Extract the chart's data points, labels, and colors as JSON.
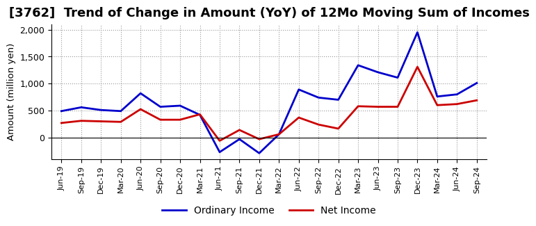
{
  "title": "[3762]  Trend of Change in Amount (YoY) of 12Mo Moving Sum of Incomes",
  "ylabel": "Amount (million yen)",
  "x_labels": [
    "Jun-19",
    "Sep-19",
    "Dec-19",
    "Mar-20",
    "Jun-20",
    "Sep-20",
    "Dec-20",
    "Mar-21",
    "Jun-21",
    "Sep-21",
    "Dec-21",
    "Mar-22",
    "Jun-22",
    "Sep-22",
    "Dec-22",
    "Mar-23",
    "Jun-23",
    "Sep-23",
    "Dec-23",
    "Mar-24",
    "Jun-24",
    "Sep-24"
  ],
  "ordinary_income": [
    490,
    560,
    510,
    490,
    820,
    570,
    590,
    420,
    -270,
    -30,
    -290,
    60,
    890,
    740,
    700,
    1340,
    1210,
    1110,
    1950,
    760,
    800,
    1010
  ],
  "net_income": [
    270,
    310,
    300,
    290,
    525,
    330,
    330,
    430,
    -60,
    140,
    -30,
    60,
    370,
    240,
    165,
    580,
    570,
    570,
    1310,
    600,
    620,
    690
  ],
  "ordinary_income_color": "#0000cc",
  "net_income_color": "#cc0000",
  "line_width": 2.0,
  "ylim_min": -400,
  "ylim_max": 2100,
  "yticks": [
    0,
    500,
    1000,
    1500,
    2000
  ],
  "background_color": "#ffffff",
  "grid_color": "#999999",
  "title_fontsize": 13,
  "legend_labels": [
    "Ordinary Income",
    "Net Income"
  ]
}
